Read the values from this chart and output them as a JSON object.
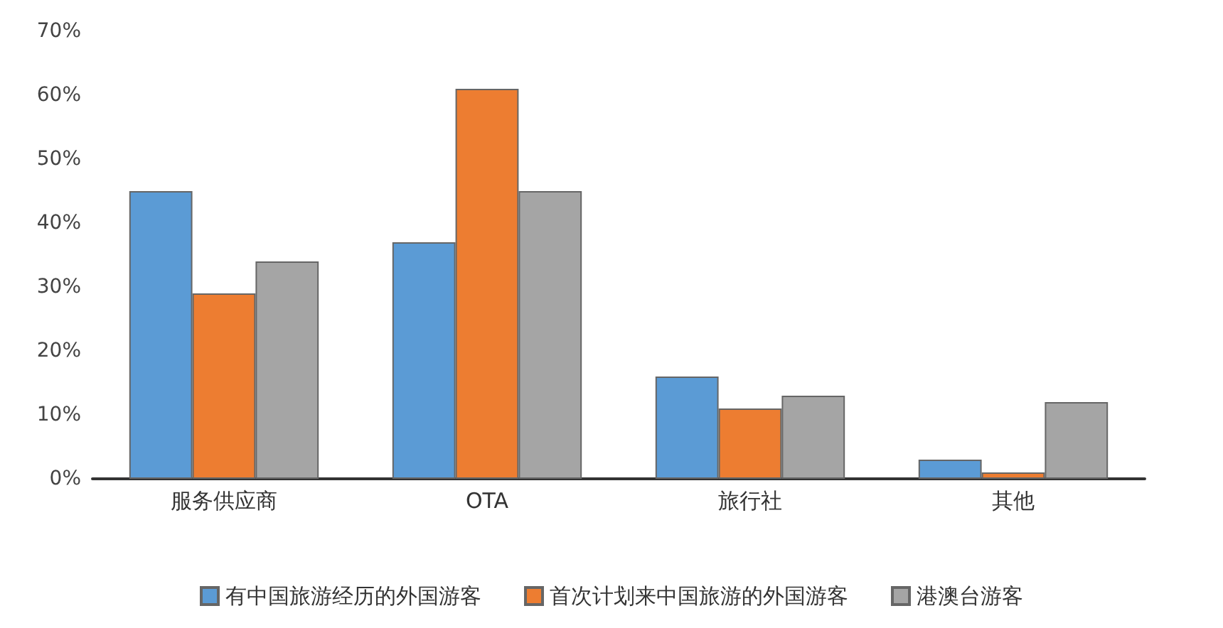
{
  "chart_data": {
    "type": "bar",
    "categories": [
      "服务供应商",
      "OTA",
      "旅行社",
      "其他"
    ],
    "series": [
      {
        "name": "有中国旅游经历的外国游客",
        "color": "#5b9bd5",
        "values": [
          45,
          37,
          16,
          3
        ]
      },
      {
        "name": "首次计划来中国旅游的外国游客",
        "color": "#ed7d31",
        "values": [
          29,
          61,
          11,
          1
        ]
      },
      {
        "name": "港澳台游客",
        "color": "#a5a5a5",
        "values": [
          34,
          45,
          13,
          12
        ]
      }
    ],
    "ylim": [
      0,
      70
    ],
    "yticks": [
      {
        "value": 0,
        "label": "0%"
      },
      {
        "value": 10,
        "label": "10%"
      },
      {
        "value": 20,
        "label": "20%"
      },
      {
        "value": 30,
        "label": "30%"
      },
      {
        "value": 40,
        "label": "40%"
      },
      {
        "value": 50,
        "label": "50%"
      },
      {
        "value": 60,
        "label": "60%"
      },
      {
        "value": 70,
        "label": "70%"
      }
    ],
    "grid": false,
    "legend": "bottom"
  }
}
